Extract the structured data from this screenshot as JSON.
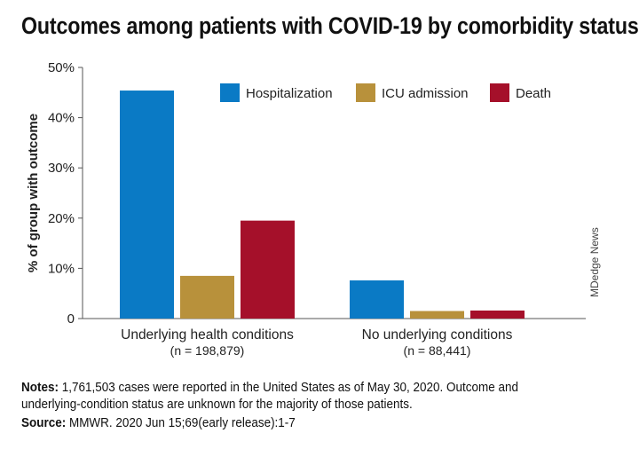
{
  "title": "Outcomes among patients with COVID-19 by comorbidity status",
  "credit": "MDedge News",
  "notes_label": "Notes:",
  "notes_text": "1,761,503 cases were reported in the United States as of May 30, 2020. Outcome and underlying-condition status are unknown for the majority of those patients.",
  "source_label": "Source:",
  "source_text": "MMWR. 2020 Jun 15;69(early release):1-7",
  "chart_data": {
    "type": "bar",
    "categories": [
      "Underlying health conditions",
      "No underlying conditions"
    ],
    "category_sublabels": [
      "(n = 198,879)",
      "(n = 88,441)"
    ],
    "series": [
      {
        "name": "Hospitalization",
        "values": [
          45.4,
          7.6
        ],
        "color": "#0a7ac5"
      },
      {
        "name": "ICU admission",
        "values": [
          8.5,
          1.5
        ],
        "color": "#b8913b"
      },
      {
        "name": "Death",
        "values": [
          19.5,
          1.6
        ],
        "color": "#a5102a"
      }
    ],
    "ylabel": "% of group with outcome",
    "ylim": [
      0,
      50
    ],
    "yticks": [
      0,
      10,
      20,
      30,
      40,
      50
    ],
    "ytick_labels": [
      "0",
      "10%",
      "20%",
      "30%",
      "40%",
      "50%"
    ],
    "grid": false,
    "legend_position": "top-right"
  }
}
